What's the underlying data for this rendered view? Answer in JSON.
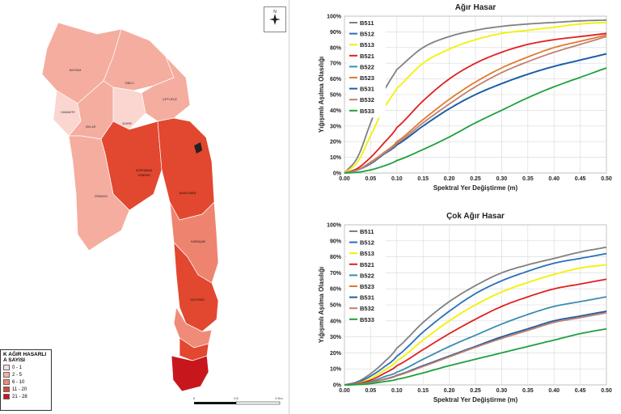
{
  "map": {
    "legend": {
      "title_line1": "K AĞIR HASARLI",
      "title_line2": "A SAYISI",
      "classes": [
        {
          "label": "0 - 1",
          "color": "#fde0dc"
        },
        {
          "label": "2 - 5",
          "color": "#f6b0a4"
        },
        {
          "label": "6 - 10",
          "color": "#ef8a76"
        },
        {
          "label": "11 - 20",
          "color": "#e0452f"
        },
        {
          "label": "21 - 28",
          "color": "#c8171c"
        }
      ]
    },
    "north_label": "N",
    "scale_labels": [
      "0",
      "0.5",
      "0 Km"
    ],
    "district_labels": [
      "BAYRAM",
      "SINELİ",
      "ÇIFTLİKÇE",
      "HAMAMTE",
      "ISKLAR",
      "ŞAHBE",
      "KÖPRÜBAŞI",
      "YENİDEN",
      "ORMANCI",
      "MUSELİMEN",
      "KARAÇAM",
      "GÜLTEKİN"
    ],
    "colors": {
      "light": "#fbd5cf",
      "mid": "#f2a296",
      "salmon": "#ee8470",
      "red": "#e24a33",
      "deep": "#c8171c"
    }
  },
  "chart_data": [
    {
      "type": "line",
      "title": "Ağır Hasar",
      "xlabel": "Spektral Yer Değiştirme (m)",
      "ylabel": "Yığışımlı Aşılma Olasılığı",
      "xlim": [
        0,
        0.5
      ],
      "ylim": [
        0,
        1
      ],
      "xticks": [
        "0.00",
        "0.05",
        "0.10",
        "0.15",
        "0.20",
        "0.25",
        "0.30",
        "0.35",
        "0.40",
        "0.45",
        "0.50"
      ],
      "yticks": [
        "0%",
        "10%",
        "20%",
        "30%",
        "40%",
        "50%",
        "60%",
        "70%",
        "80%",
        "90%",
        "100%"
      ],
      "legend_position": "top-left",
      "x": [
        0.0,
        0.025,
        0.05,
        0.075,
        0.1,
        0.15,
        0.2,
        0.25,
        0.3,
        0.35,
        0.4,
        0.45,
        0.5
      ],
      "series": [
        {
          "name": "B511",
          "color": "#808080",
          "values": [
            0,
            0.1,
            0.32,
            0.52,
            0.66,
            0.8,
            0.87,
            0.91,
            0.935,
            0.95,
            0.96,
            0.97,
            0.975
          ]
        },
        {
          "name": "B512",
          "color": "#2a6ebb",
          "values": [
            0,
            0.02,
            0.06,
            0.12,
            0.18,
            0.3,
            0.41,
            0.5,
            0.57,
            0.63,
            0.68,
            0.72,
            0.76
          ]
        },
        {
          "name": "B513",
          "color": "#f2f200",
          "values": [
            0,
            0.07,
            0.24,
            0.41,
            0.54,
            0.7,
            0.79,
            0.85,
            0.89,
            0.91,
            0.93,
            0.95,
            0.96
          ]
        },
        {
          "name": "B521",
          "color": "#e02020",
          "values": [
            0,
            0.03,
            0.1,
            0.19,
            0.29,
            0.46,
            0.6,
            0.7,
            0.77,
            0.82,
            0.85,
            0.87,
            0.89
          ]
        },
        {
          "name": "B522",
          "color": "#3a8cb0",
          "values": [
            0,
            0.02,
            0.06,
            0.12,
            0.18,
            0.3,
            0.41,
            0.5,
            0.57,
            0.63,
            0.68,
            0.72,
            0.76
          ]
        },
        {
          "name": "B523",
          "color": "#e07a30",
          "values": [
            0,
            0.02,
            0.07,
            0.13,
            0.2,
            0.34,
            0.47,
            0.58,
            0.67,
            0.74,
            0.8,
            0.84,
            0.88
          ]
        },
        {
          "name": "B531",
          "color": "#1e5fa8",
          "values": [
            0,
            0.02,
            0.06,
            0.12,
            0.18,
            0.3,
            0.41,
            0.5,
            0.57,
            0.63,
            0.68,
            0.72,
            0.76
          ]
        },
        {
          "name": "B532",
          "color": "#c08070",
          "values": [
            0,
            0.02,
            0.065,
            0.125,
            0.19,
            0.32,
            0.44,
            0.55,
            0.64,
            0.71,
            0.77,
            0.82,
            0.87
          ]
        },
        {
          "name": "B533",
          "color": "#1ea03c",
          "values": [
            0,
            0.005,
            0.02,
            0.045,
            0.08,
            0.15,
            0.23,
            0.32,
            0.4,
            0.48,
            0.55,
            0.61,
            0.67
          ]
        }
      ]
    },
    {
      "type": "line",
      "title": "Çok Ağır Hasar",
      "xlabel": "Spektral Yer Değiştirme (m)",
      "ylabel": "Yığışımlı Aşılma Olasılığı",
      "xlim": [
        0,
        0.5
      ],
      "ylim": [
        0,
        1
      ],
      "xticks": [
        "0.00",
        "0.05",
        "0.10",
        "0.15",
        "0.20",
        "0.25",
        "0.30",
        "0.35",
        "0.40",
        "0.45",
        "0.50"
      ],
      "yticks": [
        "0%",
        "10%",
        "20%",
        "30%",
        "40%",
        "50%",
        "60%",
        "70%",
        "80%",
        "90%",
        "100%"
      ],
      "legend_position": "top-left",
      "x": [
        0.0,
        0.025,
        0.05,
        0.075,
        0.1,
        0.15,
        0.2,
        0.25,
        0.3,
        0.35,
        0.4,
        0.45,
        0.5
      ],
      "series": [
        {
          "name": "B511",
          "color": "#808080",
          "values": [
            0,
            0.02,
            0.07,
            0.14,
            0.23,
            0.39,
            0.52,
            0.62,
            0.7,
            0.75,
            0.79,
            0.83,
            0.86
          ]
        },
        {
          "name": "B512",
          "color": "#2a6ebb",
          "values": [
            0,
            0.015,
            0.055,
            0.11,
            0.18,
            0.33,
            0.46,
            0.57,
            0.65,
            0.71,
            0.76,
            0.79,
            0.82
          ]
        },
        {
          "name": "B513",
          "color": "#f2f200",
          "values": [
            0,
            0.01,
            0.04,
            0.09,
            0.15,
            0.28,
            0.4,
            0.5,
            0.58,
            0.64,
            0.69,
            0.73,
            0.75
          ]
        },
        {
          "name": "B521",
          "color": "#e02020",
          "values": [
            0,
            0.008,
            0.03,
            0.07,
            0.12,
            0.22,
            0.32,
            0.41,
            0.49,
            0.55,
            0.6,
            0.63,
            0.66
          ]
        },
        {
          "name": "B522",
          "color": "#3a8cb0",
          "values": [
            0,
            0.005,
            0.02,
            0.05,
            0.08,
            0.16,
            0.24,
            0.31,
            0.38,
            0.44,
            0.49,
            0.52,
            0.55
          ]
        },
        {
          "name": "B523",
          "color": "#e07a30",
          "values": [
            0,
            0.004,
            0.015,
            0.035,
            0.06,
            0.12,
            0.18,
            0.24,
            0.3,
            0.35,
            0.4,
            0.43,
            0.46
          ]
        },
        {
          "name": "B531",
          "color": "#1e5fa8",
          "values": [
            0,
            0.004,
            0.015,
            0.035,
            0.06,
            0.12,
            0.18,
            0.24,
            0.3,
            0.35,
            0.4,
            0.43,
            0.46
          ]
        },
        {
          "name": "B532",
          "color": "#c08070",
          "values": [
            0,
            0.004,
            0.014,
            0.033,
            0.057,
            0.115,
            0.175,
            0.235,
            0.29,
            0.34,
            0.39,
            0.42,
            0.45
          ]
        },
        {
          "name": "B533",
          "color": "#1ea03c",
          "values": [
            0,
            0.002,
            0.008,
            0.02,
            0.035,
            0.075,
            0.12,
            0.16,
            0.2,
            0.24,
            0.28,
            0.32,
            0.35
          ]
        }
      ]
    }
  ]
}
